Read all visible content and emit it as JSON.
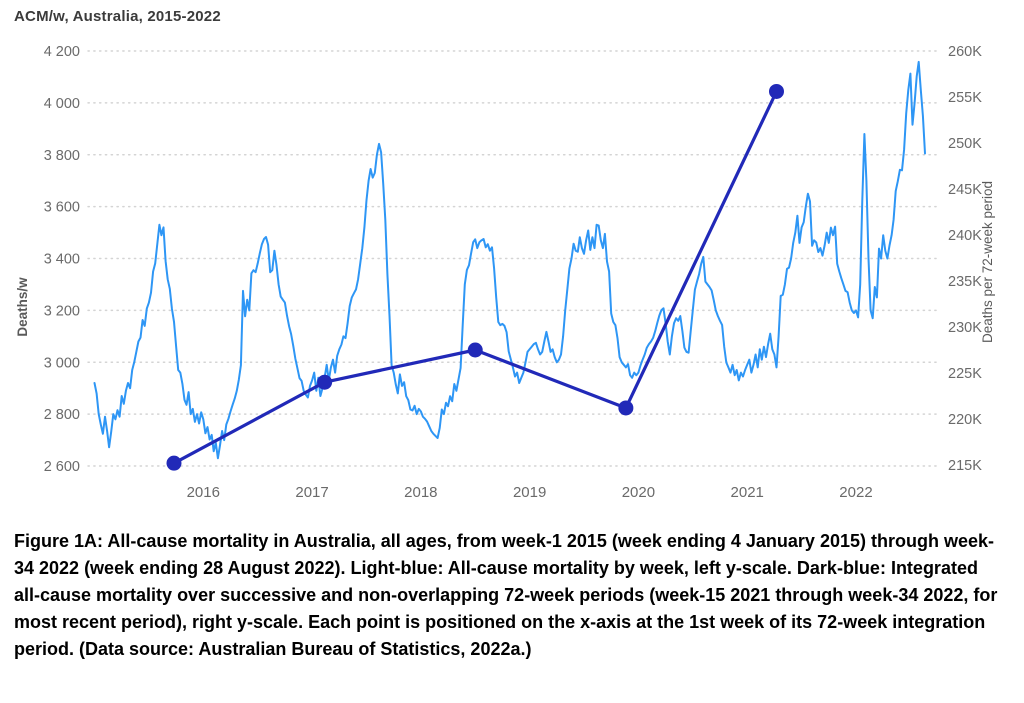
{
  "chart": {
    "title": "ACM/w, Australia, 2015-2022"
  },
  "caption": {
    "text": "Figure 1A: All-cause mortality in Australia, all ages, from week-1 2015 (week ending 4 January 2015) through week-34 2022 (week ending 28 August 2022). Light-blue: All-cause mortality by week, left y-scale. Dark-blue: Integrated all-cause mortality over successive and non-overlapping 72-week periods (week-15 2021 through week-34 2022, for most recent period), right y-scale. Each point is positioned on the x-axis at the 1st week of its 72-week integration period. (Data source: Australian Bureau of Statistics, 2022a.)"
  },
  "chart_data": {
    "type": "line",
    "title": "ACM/w, Australia, 2015-2022",
    "grid": "dotted horizontal gridlines",
    "legend_position": "none",
    "x_axis": {
      "unit": "weeks from week-1 2015 to week-34 2022",
      "tick_labels": [
        "2016",
        "2017",
        "2018",
        "2019",
        "2020",
        "2021",
        "2022"
      ],
      "tick_week_indices": [
        52,
        104,
        156,
        208,
        260,
        312,
        364
      ],
      "total_weeks": 398
    },
    "left_axis": {
      "label": "Deaths/w",
      "range": [
        2600,
        4200
      ],
      "tick_labels": [
        "4 200",
        "4 000",
        "3 800",
        "3 600",
        "3 400",
        "3 200",
        "3 000",
        "2 800",
        "2 600"
      ],
      "tick_values": [
        4200,
        4000,
        3800,
        3600,
        3400,
        3200,
        3000,
        2800,
        2600
      ]
    },
    "right_axis": {
      "label": "Deaths per 72-week period",
      "range": [
        215,
        260
      ],
      "unit": "K",
      "tick_labels": [
        "260K",
        "255K",
        "250K",
        "245K",
        "240K",
        "235K",
        "230K",
        "225K",
        "220K",
        "215K"
      ],
      "tick_values": [
        260,
        255,
        250,
        245,
        240,
        235,
        230,
        225,
        220,
        215
      ]
    },
    "series": [
      {
        "name": "All-cause mortality by week (light blue, left y-scale)",
        "color": "#2e96f5",
        "axis": "left",
        "weekly_values": [
          2920,
          2880,
          2800,
          2760,
          2724,
          2790,
          2735,
          2672,
          2732,
          2800,
          2780,
          2815,
          2790,
          2870,
          2840,
          2890,
          2920,
          2900,
          2970,
          3000,
          3040,
          3080,
          3095,
          3163,
          3140,
          3207,
          3230,
          3268,
          3350,
          3381,
          3456,
          3530,
          3490,
          3520,
          3390,
          3320,
          3283,
          3207,
          3156,
          3062,
          2970,
          2960,
          2917,
          2855,
          2836,
          2885,
          2800,
          2820,
          2770,
          2800,
          2764,
          2807,
          2780,
          2726,
          2750,
          2702,
          2720,
          2657,
          2690,
          2630,
          2680,
          2735,
          2700,
          2760,
          2782,
          2810,
          2836,
          2860,
          2890,
          2932,
          2989,
          3275,
          3177,
          3241,
          3200,
          3343,
          3355,
          3347,
          3381,
          3420,
          3455,
          3475,
          3483,
          3453,
          3347,
          3355,
          3430,
          3374,
          3300,
          3253,
          3241,
          3230,
          3180,
          3139,
          3109,
          3064,
          3015,
          2977,
          2939,
          2928,
          2890,
          2875,
          2864,
          2909,
          2930,
          2960,
          2890,
          2940,
          2870,
          2900,
          2940,
          2990,
          2930,
          2980,
          3010,
          2960,
          3025,
          3050,
          3068,
          3100,
          3093,
          3150,
          3217,
          3250,
          3266,
          3281,
          3320,
          3380,
          3440,
          3520,
          3625,
          3700,
          3745,
          3712,
          3730,
          3800,
          3842,
          3810,
          3689,
          3550,
          3340,
          3180,
          2989,
          2960,
          2916,
          2880,
          2953,
          2909,
          2923,
          2869,
          2854,
          2818,
          2814,
          2832,
          2800,
          2820,
          2810,
          2790,
          2782,
          2771,
          2753,
          2735,
          2724,
          2716,
          2708,
          2746,
          2818,
          2800,
          2844,
          2830,
          2869,
          2850,
          2916,
          2890,
          2934,
          2978,
          3143,
          3300,
          3356,
          3374,
          3420,
          3463,
          3474,
          3440,
          3463,
          3470,
          3475,
          3443,
          3455,
          3430,
          3443,
          3362,
          3250,
          3155,
          3143,
          3148,
          3140,
          3116,
          3042,
          3011,
          2980,
          2945,
          2960,
          2920,
          2940,
          2960,
          3000,
          3040,
          3050,
          3060,
          3070,
          3075,
          3050,
          3030,
          3040,
          3080,
          3117,
          3080,
          3040,
          3050,
          3020,
          3000,
          3010,
          3030,
          3100,
          3200,
          3280,
          3362,
          3400,
          3457,
          3430,
          3426,
          3482,
          3440,
          3418,
          3470,
          3508,
          3433,
          3482,
          3440,
          3530,
          3527,
          3470,
          3440,
          3495,
          3388,
          3350,
          3188,
          3155,
          3143,
          3093,
          3020,
          3000,
          2990,
          2980,
          2993,
          2950,
          2940,
          2960,
          2950,
          2960,
          2988,
          3010,
          3030,
          3056,
          3070,
          3080,
          3094,
          3120,
          3150,
          3180,
          3201,
          3208,
          3150,
          3080,
          3030,
          3100,
          3150,
          3170,
          3160,
          3178,
          3120,
          3056,
          3040,
          3037,
          3120,
          3201,
          3280,
          3311,
          3340,
          3380,
          3406,
          3311,
          3300,
          3290,
          3277,
          3240,
          3200,
          3178,
          3160,
          3144,
          3060,
          2999,
          2980,
          2960,
          2990,
          2950,
          2970,
          2930,
          2960,
          2945,
          2970,
          2990,
          3010,
          2960,
          2990,
          3030,
          2980,
          3050,
          3010,
          3060,
          3020,
          3070,
          3110,
          3050,
          3030,
          2980,
          3100,
          3256,
          3260,
          3300,
          3360,
          3365,
          3400,
          3460,
          3500,
          3565,
          3460,
          3520,
          3540,
          3600,
          3650,
          3620,
          3449,
          3470,
          3462,
          3425,
          3440,
          3411,
          3450,
          3500,
          3460,
          3519,
          3490,
          3523,
          3380,
          3350,
          3324,
          3300,
          3275,
          3270,
          3230,
          3200,
          3190,
          3200,
          3173,
          3300,
          3626,
          3880,
          3700,
          3400,
          3200,
          3170,
          3290,
          3250,
          3438,
          3400,
          3490,
          3430,
          3400,
          3450,
          3490,
          3550,
          3660,
          3698,
          3742,
          3740,
          3820,
          3960,
          4050,
          4113,
          3916,
          4000,
          4102,
          4158,
          4050,
          3950,
          3805
        ]
      },
      {
        "name": "Integrated all-cause mortality over successive non-overlapping 72-week periods (dark blue, right y-scale)",
        "color": "#2129b8",
        "axis": "right",
        "points": [
          {
            "start_week_index": 38,
            "value_k": 215.2
          },
          {
            "start_week_index": 110,
            "value_k": 224.0
          },
          {
            "start_week_index": 182,
            "value_k": 227.5
          },
          {
            "start_week_index": 254,
            "value_k": 221.2
          },
          {
            "start_week_index": 326,
            "value_k": 255.6
          }
        ]
      }
    ]
  },
  "style": {
    "grid_color": "#d4d4d4",
    "tick_label_color": "#6a6a6a",
    "axis_title_color": "#5a5a5a",
    "weekly_line_color": "#2e96f5",
    "integral_line_color": "#2129b8"
  }
}
